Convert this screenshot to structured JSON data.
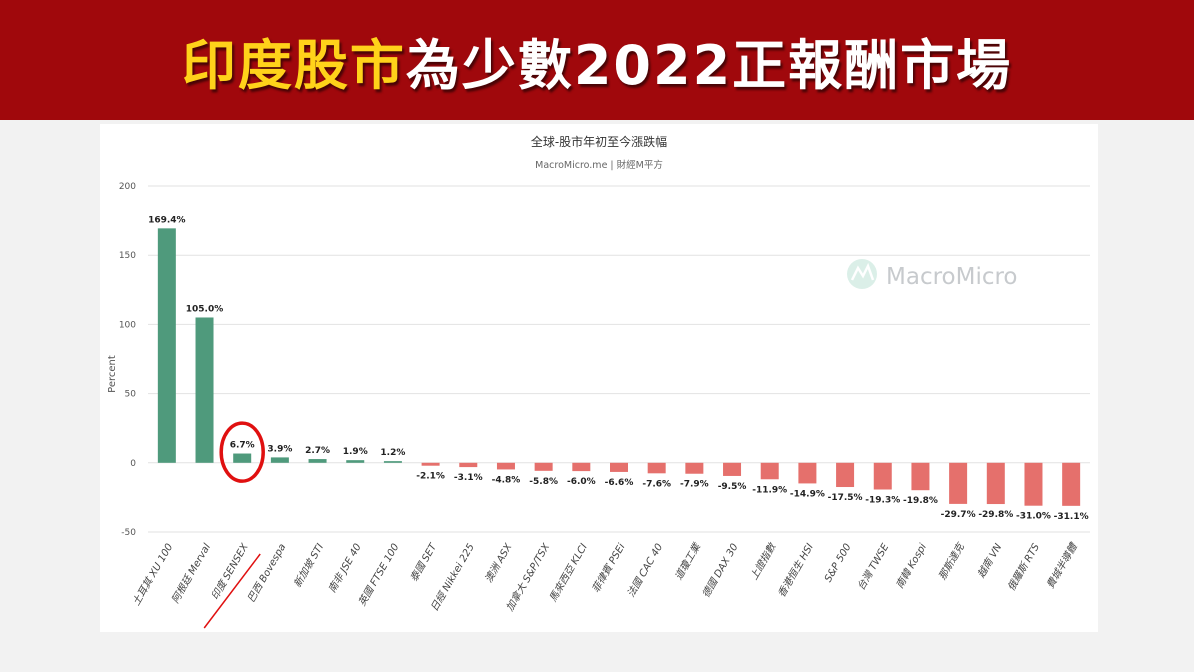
{
  "banner": {
    "title_highlight": "印度股市",
    "title_rest": "為少數2022正報酬市場",
    "highlight_color": "#ffd21a",
    "background_color": "#a0080c"
  },
  "chart_data": {
    "type": "bar",
    "title": "全球-股市年初至今漲跌幅",
    "subtitle": "MacroMicro.me | 財經M平方",
    "watermark": "MacroMicro",
    "xlabel": "",
    "ylabel": "Percent",
    "ylim": [
      -50,
      200
    ],
    "yticks": [
      -50,
      0,
      50,
      100,
      150,
      200
    ],
    "grid": true,
    "categories": [
      "土耳其 XU 100",
      "阿根廷 Merval",
      "印度 SENSEX",
      "巴西 Bovespa",
      "新加坡 STI",
      "南非 JSE 40",
      "英國 FTSE 100",
      "泰國 SET",
      "日經 Nikkei 225",
      "澳洲 ASX",
      "加拿大 S&P/TSX",
      "馬來西亞 KLCI",
      "菲律賓 PSEi",
      "法國 CAC 40",
      "道瓊工業",
      "德國 DAX 30",
      "上證指數",
      "香港恒生 HSI",
      "S&P 500",
      "台灣 TWSE",
      "南韓 Kospi",
      "那斯達克",
      "越南 VN",
      "俄羅斯 RTS",
      "費城半導體"
    ],
    "values": [
      169.4,
      105.0,
      6.7,
      3.9,
      2.7,
      1.9,
      1.2,
      -2.1,
      -3.1,
      -4.8,
      -5.8,
      -6.0,
      -6.6,
      -7.6,
      -7.9,
      -9.5,
      -11.9,
      -14.9,
      -17.5,
      -19.3,
      -19.8,
      -29.7,
      -29.8,
      -31.0,
      -31.1
    ],
    "data_labels": [
      "169.4%",
      "105.0%",
      "6.7%",
      "3.9%",
      "2.7%",
      "1.9%",
      "1.2%",
      "-2.1%",
      "-3.1%",
      "-4.8%",
      "-5.8%",
      "-6.0%",
      "-6.6%",
      "-7.6%",
      "-7.9%",
      "-9.5%",
      "-11.9%",
      "-14.9%",
      "-17.5%",
      "-19.3%",
      "-19.8%",
      "-29.7%",
      "-29.8%",
      "-31.0%",
      "-31.1%"
    ],
    "highlighted_category": "印度 SENSEX",
    "colors": {
      "positive": "#4f9a7c",
      "negative": "#e5706c",
      "highlight": "#e01010"
    }
  }
}
